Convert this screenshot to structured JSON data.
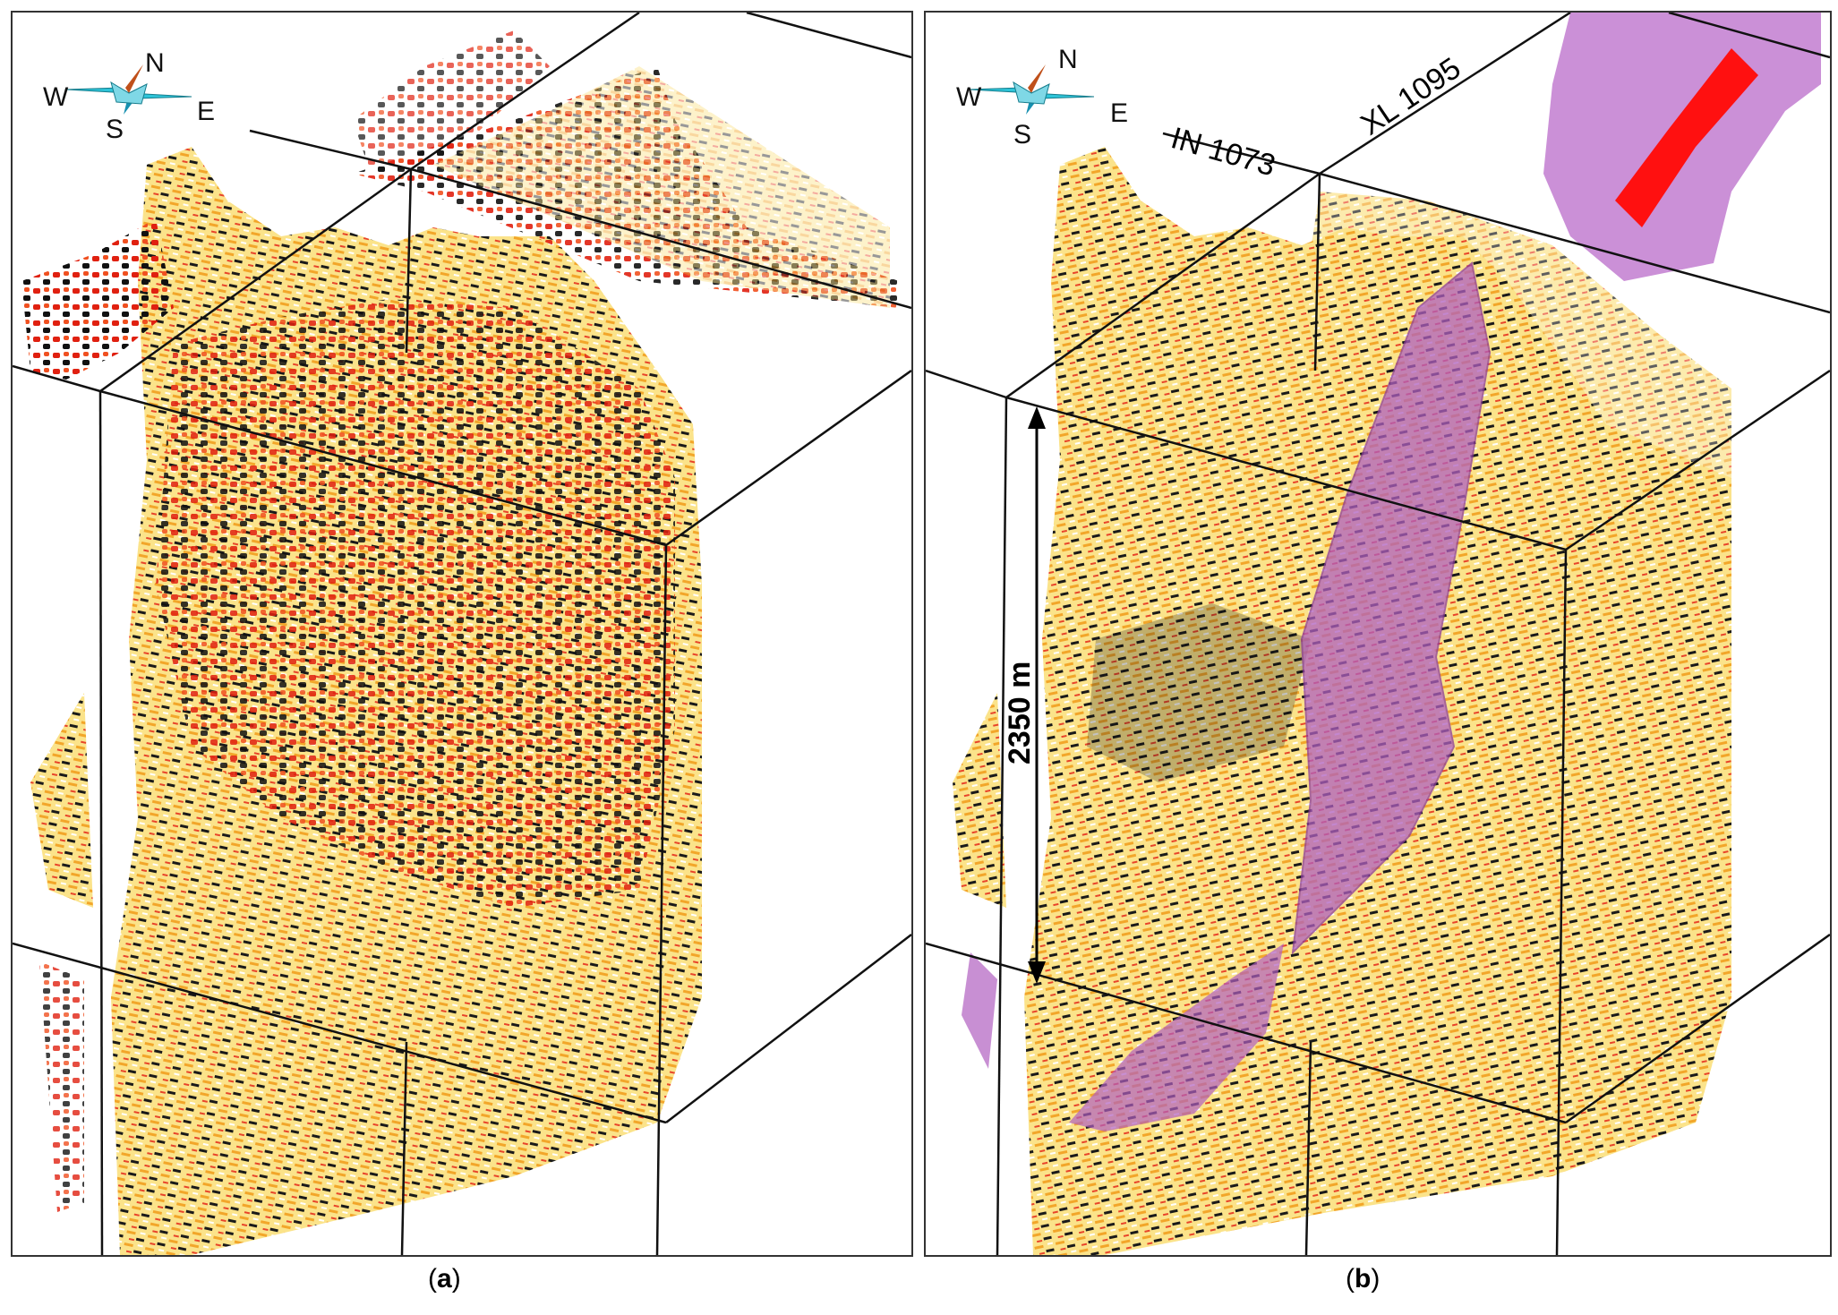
{
  "panels": [
    {
      "caption_open": "(",
      "caption_letter": "a",
      "caption_close": ")",
      "compass": {
        "north": "N",
        "south": "S",
        "east": "E",
        "west": "W"
      }
    },
    {
      "caption_open": "(",
      "caption_letter": "b",
      "caption_close": ")",
      "compass": {
        "north": "N",
        "south": "S",
        "east": "E",
        "west": "W"
      },
      "inline_label": "IN 1073",
      "crossline_label": "XL 1095",
      "scale_label": "2350 m"
    }
  ],
  "colors": {
    "seismic_yellow": "#f5d020",
    "seismic_orange": "#f08a1a",
    "seismic_red": "#e02010",
    "seismic_black": "#111111",
    "geobody_purple": "#b060c0",
    "fault_red": "#ff1010",
    "compass_cyan": "#2ec4d8",
    "compass_north": "#c0501a"
  }
}
